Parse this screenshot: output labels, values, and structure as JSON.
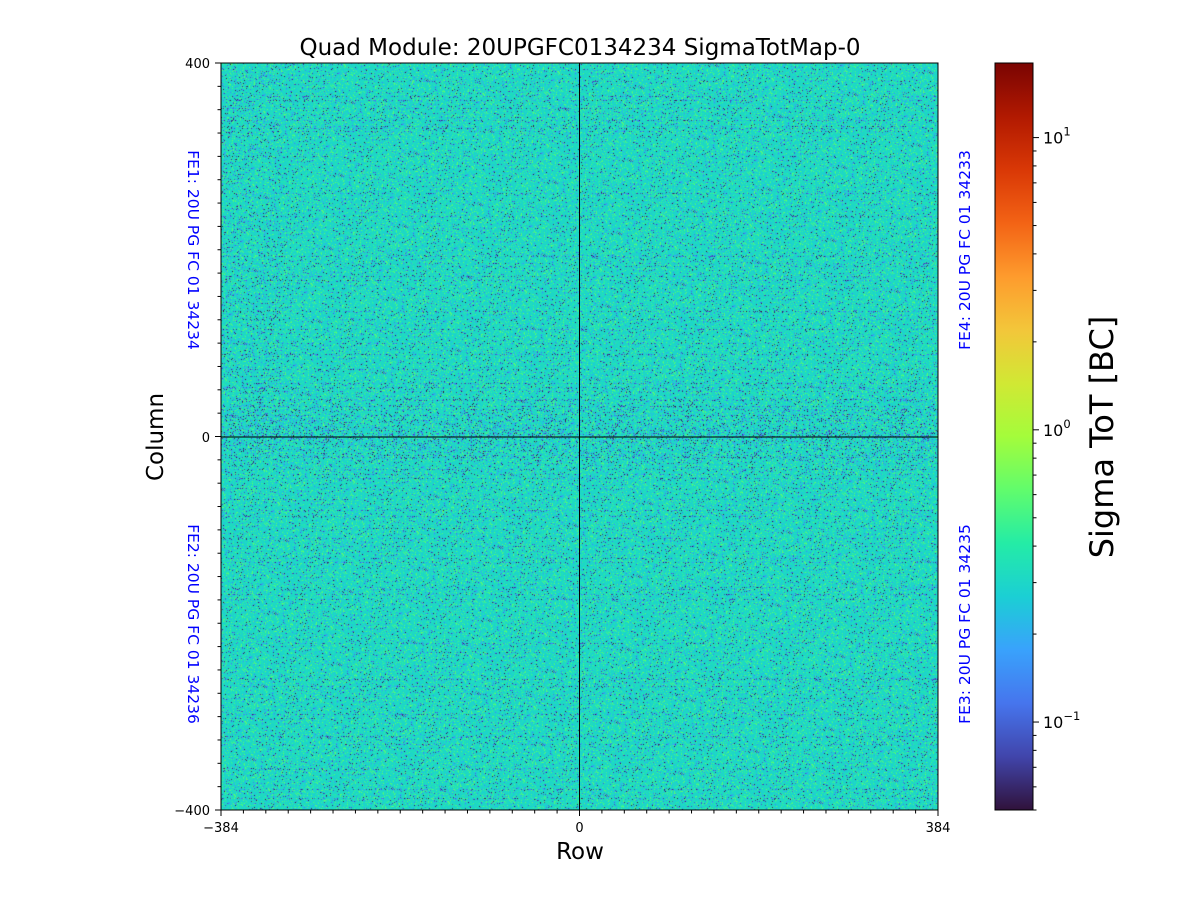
{
  "chart_data": {
    "type": "heatmap",
    "title": "Quad Module: 20UPGFC0134234 SigmaTotMap-0",
    "xlabel": "Row",
    "ylabel": "Column",
    "xlim": [
      -384,
      384
    ],
    "ylim": [
      -400,
      400
    ],
    "x_ticks": [
      "−384",
      "0",
      "384"
    ],
    "y_ticks": [
      "400",
      "0",
      "−400"
    ],
    "colorbar": {
      "label": "Sigma ToT [BC]",
      "scale": "log",
      "range": [
        0.05,
        18
      ],
      "ticks": [
        {
          "value": 10,
          "base": "10",
          "exp": "1"
        },
        {
          "value": 1,
          "base": "10",
          "exp": "0"
        },
        {
          "value": 0.1,
          "base": "10",
          "exp": "−1"
        }
      ],
      "colormap": [
        "#30123b",
        "#4145ab",
        "#4675ed",
        "#39a2fc",
        "#1bcfd4",
        "#24eca6",
        "#61fc6c",
        "#a4fc3b",
        "#d1e834",
        "#f3c63a",
        "#fe9b2d",
        "#f36315",
        "#d93806",
        "#b11901",
        "#7a0402"
      ]
    },
    "chips": [
      {
        "label": "FE1: 20U PG FC 01 34234",
        "quadrant": "top-left",
        "x_range": [
          -384,
          0
        ],
        "y_range": [
          0,
          400
        ]
      },
      {
        "label": "FE4: 20U PG FC 01 34233",
        "quadrant": "top-right",
        "x_range": [
          0,
          384
        ],
        "y_range": [
          0,
          400
        ]
      },
      {
        "label": "FE2: 20U PG FC 01 34236",
        "quadrant": "bottom-left",
        "x_range": [
          -384,
          0
        ],
        "y_range": [
          -400,
          0
        ]
      },
      {
        "label": "FE3: 20U PG FC 01 34235",
        "quadrant": "bottom-right",
        "x_range": [
          0,
          384
        ],
        "y_range": [
          -400,
          0
        ]
      }
    ],
    "dominant_value": 0.3,
    "chip_label_color": "#0000ff"
  }
}
